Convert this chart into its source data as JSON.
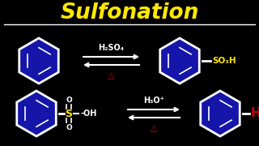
{
  "title": "Sulfonation",
  "title_color": "#FFE800",
  "bg_color": "#000000",
  "line_color": "#FFFFFF",
  "blue_fill": "#1515aa",
  "blue_edge": "#FFFFFF",
  "red_color": "#CC0000",
  "yellow_color": "#FFE800",
  "top_reagent": "H₂SO₄",
  "top_product_label": "SO₃H",
  "bottom_reagent": "H₃O⁺",
  "bottom_product_label": "H",
  "heat_symbol": "△"
}
